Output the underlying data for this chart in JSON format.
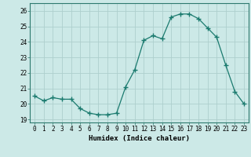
{
  "x": [
    0,
    1,
    2,
    3,
    4,
    5,
    6,
    7,
    8,
    9,
    10,
    11,
    12,
    13,
    14,
    15,
    16,
    17,
    18,
    19,
    20,
    21,
    22,
    23
  ],
  "y": [
    20.5,
    20.2,
    20.4,
    20.3,
    20.3,
    19.7,
    19.4,
    19.3,
    19.3,
    19.4,
    21.1,
    22.2,
    24.1,
    24.4,
    24.2,
    25.6,
    25.8,
    25.8,
    25.5,
    24.9,
    24.3,
    22.5,
    20.8,
    20.0
  ],
  "line_color": "#1a7a6e",
  "marker": "+",
  "marker_size": 4,
  "bg_color": "#cce9e7",
  "grid_color": "#aecfcd",
  "xlabel": "Humidex (Indice chaleur)",
  "xlim": [
    -0.5,
    23.5
  ],
  "ylim": [
    18.8,
    26.5
  ],
  "yticks": [
    19,
    20,
    21,
    22,
    23,
    24,
    25,
    26
  ],
  "xticks": [
    0,
    1,
    2,
    3,
    4,
    5,
    6,
    7,
    8,
    9,
    10,
    11,
    12,
    13,
    14,
    15,
    16,
    17,
    18,
    19,
    20,
    21,
    22,
    23
  ],
  "tick_fontsize": 5.5,
  "label_fontsize": 6.5
}
